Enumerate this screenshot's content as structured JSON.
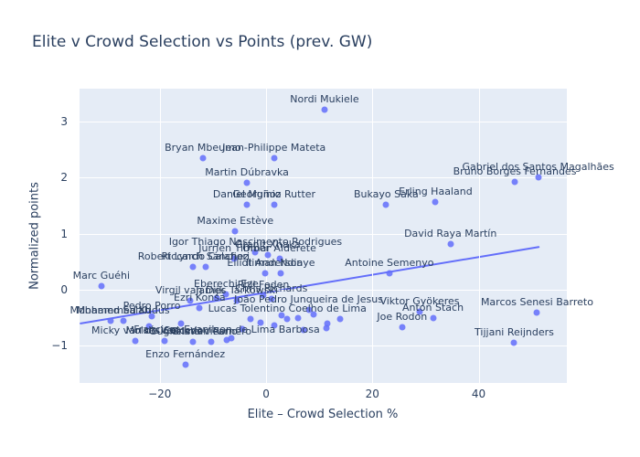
{
  "title": "Elite v Crowd Selection vs Points (prev. GW)",
  "chart_data": {
    "type": "scatter",
    "title": "Elite v Crowd Selection vs Points (prev. GW)",
    "xlabel": "Elite – Crowd Selection %",
    "ylabel": "Normalized points",
    "x_range": [
      -35.1,
      56.6
    ],
    "y_range": [
      -1.66,
      3.58
    ],
    "grid": "on",
    "legend": "none",
    "x_ticks": [
      {
        "v": -20,
        "label": "−20"
      },
      {
        "v": 0,
        "label": "0"
      },
      {
        "v": 20,
        "label": "20"
      },
      {
        "v": 40,
        "label": "40"
      }
    ],
    "y_ticks": [
      {
        "v": -1,
        "label": "−1"
      },
      {
        "v": 0,
        "label": "0"
      },
      {
        "v": 1,
        "label": "1"
      },
      {
        "v": 2,
        "label": "2"
      },
      {
        "v": 3,
        "label": "3"
      }
    ],
    "points": [
      {
        "label": "Nordi Mukiele",
        "x": 11.0,
        "y": 3.21
      },
      {
        "label": "Bryan Mbeumo",
        "x": -11.9,
        "y": 2.34
      },
      {
        "label": "Jean-Philippe Mateta",
        "x": 1.5,
        "y": 2.34
      },
      {
        "label": "Martin Dúbravka",
        "x": -3.6,
        "y": 1.91
      },
      {
        "label": "Daniel Muñoz",
        "x": -3.6,
        "y": 1.51
      },
      {
        "label": "Georginio Rutter",
        "x": 1.5,
        "y": 1.51
      },
      {
        "label": "Bukayo Saka",
        "x": 22.6,
        "y": 1.52
      },
      {
        "label": "Erling Haaland",
        "x": 31.9,
        "y": 1.57
      },
      {
        "label": "Bruno Borges Fernandes",
        "x": 46.8,
        "y": 1.92
      },
      {
        "label": "Gabriel dos Santos Magalhães",
        "x": 51.2,
        "y": 2.0
      },
      {
        "label": "Maxime Estève",
        "x": -5.8,
        "y": 1.04
      },
      {
        "label": "Igor Thiago Nascimento Rodrigues",
        "x": -2.0,
        "y": 0.67
      },
      {
        "label": "Granit Xhaka",
        "x": 0.3,
        "y": 0.62
      },
      {
        "label": "Riccardo Calafiori",
        "x": -11.4,
        "y": 0.41
      },
      {
        "label": "Jurriën Timber",
        "x": -6.0,
        "y": 0.55
      },
      {
        "label": "Omar Alderete",
        "x": 2.5,
        "y": 0.55
      },
      {
        "label": "Robert Lynch Sánchez",
        "x": -13.7,
        "y": 0.41
      },
      {
        "label": "Elliot Anderson",
        "x": -0.2,
        "y": 0.29
      },
      {
        "label": "Iliman Ndiaye",
        "x": 2.7,
        "y": 0.29
      },
      {
        "label": "Antoine Semenyo",
        "x": 23.2,
        "y": 0.3
      },
      {
        "label": "David Raya Martín",
        "x": 34.7,
        "y": 0.82
      },
      {
        "label": "Marc Guéhi",
        "x": -31.0,
        "y": 0.06
      },
      {
        "label": "Eberechi Eze",
        "x": -7.5,
        "y": -0.08
      },
      {
        "label": "Phil Foden",
        "x": -0.5,
        "y": -0.1
      },
      {
        "label": "Virgil van Dijk",
        "x": -14.3,
        "y": -0.2
      },
      {
        "label": "James Tarkowski",
        "x": -5.5,
        "y": -0.2
      },
      {
        "label": "Chris Richards",
        "x": 1.0,
        "y": -0.16
      },
      {
        "label": "Ezri Konsa",
        "x": -12.5,
        "y": -0.33
      },
      {
        "label": "João Pedro Junqueira de Jesus",
        "x": 8.0,
        "y": -0.36
      },
      {
        "label": "Viktor Gyökeres",
        "x": 28.9,
        "y": -0.39
      },
      {
        "label": "Mohamed Salah",
        "x": -29.3,
        "y": -0.55
      },
      {
        "label": "Mohammed Kudus",
        "x": -26.9,
        "y": -0.55
      },
      {
        "label": "Pedro Porro",
        "x": -21.5,
        "y": -0.48
      },
      {
        "label": "Lucas Tolentino Coelho de Lima",
        "x": 4.0,
        "y": -0.52
      },
      {
        "label": "Anton Stach",
        "x": 31.4,
        "y": -0.51
      },
      {
        "label": "Joe Rodon",
        "x": 25.6,
        "y": -0.66
      },
      {
        "label": "Marcos Senesi Barreto",
        "x": 51.0,
        "y": -0.41
      },
      {
        "label": "Micky van de Ven",
        "x": -24.6,
        "y": -0.91
      },
      {
        "label": "Moisés Caicedo",
        "x": -19.1,
        "y": -0.91
      },
      {
        "label": "Guglielmo Vicario",
        "x": -13.7,
        "y": -0.92
      },
      {
        "label": "Cristian Romero",
        "x": -10.3,
        "y": -0.93
      },
      {
        "label": "Francisco Evanilson de Lima Barbosa",
        "x": -7.4,
        "y": -0.89
      },
      {
        "label": "Tijjani Reijnders",
        "x": 46.7,
        "y": -0.94
      },
      {
        "label": "Enzo Fernández",
        "x": -15.2,
        "y": -1.33
      }
    ],
    "extra_points": [
      [
        -6.5,
        -0.87
      ],
      [
        1.5,
        -0.64
      ],
      [
        11.3,
        -0.69
      ],
      [
        11.6,
        -0.61
      ],
      [
        -9.3,
        -0.15
      ],
      [
        -16.0,
        -0.6
      ],
      [
        -22.0,
        -0.65
      ],
      [
        3.0,
        -0.45
      ],
      [
        6.0,
        -0.5
      ],
      [
        -3.0,
        -0.52
      ],
      [
        -1.0,
        -0.58
      ],
      [
        9.0,
        -0.44
      ],
      [
        14.0,
        -0.52
      ],
      [
        -4.5,
        -0.7
      ],
      [
        7.0,
        -0.72
      ]
    ],
    "trendline": {
      "x1": -34.9,
      "y1": -0.6,
      "x2": 51.3,
      "y2": 0.76
    },
    "colors": {
      "marker": "#636efa",
      "trendline": "#636efa",
      "plot_bg": "#e5ecf6",
      "grid": "#ffffff",
      "text": "#2a3f5f",
      "paper_bg": "#ffffff"
    }
  }
}
